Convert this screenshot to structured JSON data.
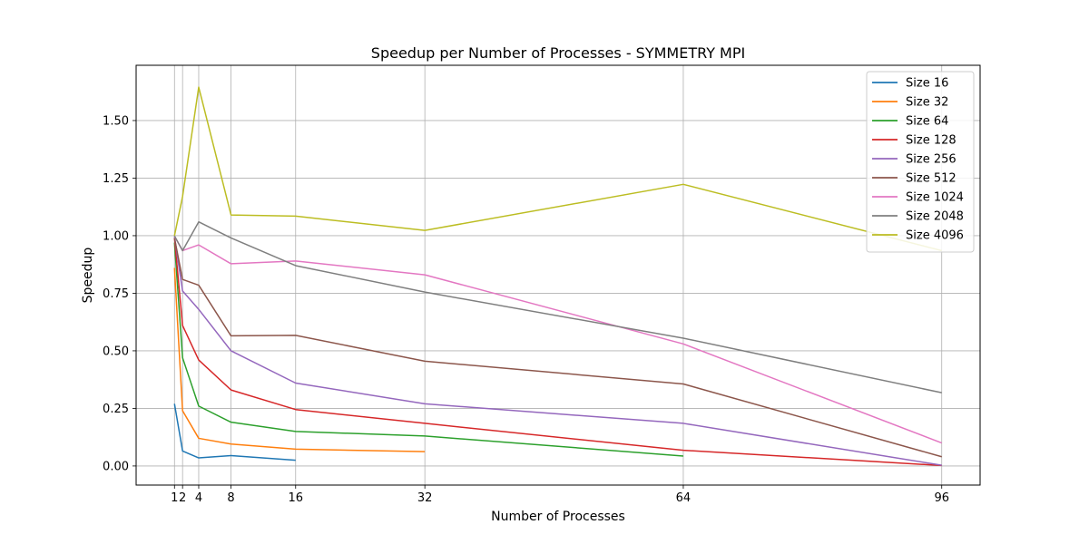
{
  "chart_data": {
    "type": "line",
    "title": "Speedup per Number of Processes - SYMMETRY MPI",
    "xlabel": "Number of Processes",
    "ylabel": "Speedup",
    "x_ticks": [
      1,
      2,
      4,
      8,
      16,
      32,
      64,
      96
    ],
    "y_ticks": [
      0.0,
      0.25,
      0.5,
      0.75,
      1.0,
      1.25,
      1.5
    ],
    "y_tick_labels": [
      "0.00",
      "0.25",
      "0.50",
      "0.75",
      "1.00",
      "1.25",
      "1.50"
    ],
    "xlim": [
      -3.75,
      100.75
    ],
    "ylim": [
      -0.083,
      1.74
    ],
    "grid": true,
    "legend_position": "top-right",
    "series": [
      {
        "name": "Size 16",
        "color": "#1f77b4",
        "x": [
          1,
          2,
          4,
          8,
          16
        ],
        "y": [
          0.27,
          0.065,
          0.035,
          0.045,
          0.025
        ]
      },
      {
        "name": "Size 32",
        "color": "#ff7f0e",
        "x": [
          1,
          2,
          4,
          8,
          16,
          32
        ],
        "y": [
          0.86,
          0.24,
          0.12,
          0.095,
          0.073,
          0.062
        ]
      },
      {
        "name": "Size 64",
        "color": "#2ca02c",
        "x": [
          1,
          2,
          4,
          8,
          16,
          32,
          64
        ],
        "y": [
          0.97,
          0.47,
          0.26,
          0.19,
          0.15,
          0.13,
          0.043
        ]
      },
      {
        "name": "Size 128",
        "color": "#d62728",
        "x": [
          1,
          2,
          4,
          8,
          16,
          32,
          64,
          96
        ],
        "y": [
          0.99,
          0.61,
          0.46,
          0.33,
          0.245,
          0.185,
          0.068,
          0.002
        ]
      },
      {
        "name": "Size 256",
        "color": "#9467bd",
        "x": [
          1,
          2,
          4,
          8,
          16,
          32,
          64,
          96
        ],
        "y": [
          0.995,
          0.76,
          0.68,
          0.5,
          0.36,
          0.27,
          0.185,
          0.003
        ]
      },
      {
        "name": "Size 512",
        "color": "#8c564b",
        "x": [
          1,
          2,
          4,
          8,
          16,
          32,
          64,
          96
        ],
        "y": [
          0.99,
          0.81,
          0.785,
          0.565,
          0.567,
          0.455,
          0.356,
          0.04
        ]
      },
      {
        "name": "Size 1024",
        "color": "#e377c2",
        "x": [
          1,
          2,
          4,
          8,
          16,
          32,
          64,
          96
        ],
        "y": [
          0.998,
          0.935,
          0.96,
          0.878,
          0.89,
          0.83,
          0.53,
          0.1
        ]
      },
      {
        "name": "Size 2048",
        "color": "#7f7f7f",
        "x": [
          1,
          2,
          4,
          8,
          16,
          32,
          64,
          96
        ],
        "y": [
          0.999,
          0.935,
          1.06,
          0.99,
          0.87,
          0.755,
          0.555,
          0.318
        ]
      },
      {
        "name": "Size 4096",
        "color": "#bcbd22",
        "x": [
          1,
          2,
          4,
          8,
          16,
          32,
          64,
          96
        ],
        "y": [
          1.0,
          1.17,
          1.645,
          1.09,
          1.085,
          1.023,
          1.223,
          0.935
        ]
      }
    ]
  }
}
